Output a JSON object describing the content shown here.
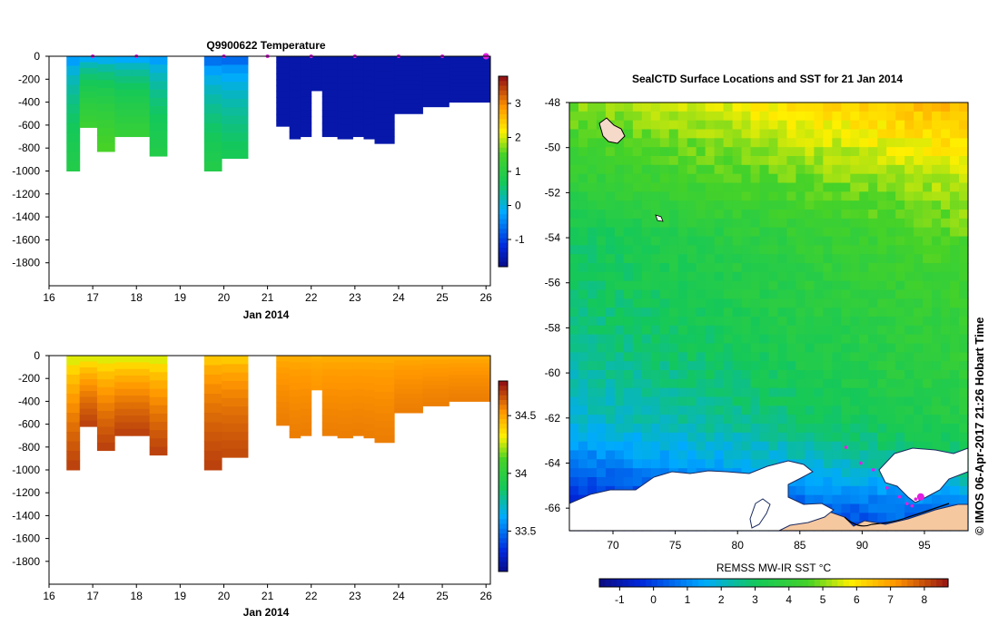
{
  "chart_data": [
    {
      "type": "heatmap",
      "title": "Q9900622  Temperature",
      "xlabel": "Jan 2014",
      "ylabel": "",
      "xlim": [
        16,
        26.1
      ],
      "ylim": [
        -2000,
        0
      ],
      "x_ticks": [
        "16",
        "17",
        "18",
        "19",
        "20",
        "21",
        "22",
        "23",
        "24",
        "25",
        "26"
      ],
      "y_ticks": [
        "0",
        "-200",
        "-400",
        "-600",
        "-800",
        "-1000",
        "-1200",
        "-1400",
        "-1600",
        "-1800"
      ],
      "colorbar": {
        "min": -1.8,
        "max": 3.8,
        "ticks": [
          "-1",
          "0",
          "1",
          "2",
          "3"
        ]
      },
      "surface_markers_days": [
        17,
        18,
        20,
        21,
        22,
        23,
        24,
        25,
        26
      ],
      "profiles": [
        {
          "x0": 16.4,
          "x1": 16.7,
          "depth": 1000,
          "surface": -0.8,
          "deep": 1.0
        },
        {
          "x0": 16.7,
          "x1": 17.1,
          "depth": 620,
          "surface": -0.8,
          "deep": 1.4
        },
        {
          "x0": 17.1,
          "x1": 17.5,
          "depth": 830,
          "surface": -0.8,
          "deep": 1.6
        },
        {
          "x0": 17.5,
          "x1": 17.9,
          "depth": 700,
          "surface": -0.8,
          "deep": 1.3
        },
        {
          "x0": 17.9,
          "x1": 18.3,
          "depth": 700,
          "surface": -0.8,
          "deep": 1.3
        },
        {
          "x0": 18.3,
          "x1": 18.7,
          "depth": 870,
          "surface": -0.8,
          "deep": 1.0
        },
        {
          "x0": 19.55,
          "x1": 19.95,
          "depth": 1000,
          "surface": -1.3,
          "deep": 1.0
        },
        {
          "x0": 19.95,
          "x1": 20.55,
          "depth": 890,
          "surface": -1.3,
          "deep": 0.8
        },
        {
          "x0": 21.2,
          "x1": 21.5,
          "depth": 610,
          "surface": -1.5,
          "deep": -1.5
        },
        {
          "x0": 21.5,
          "x1": 21.75,
          "depth": 720,
          "surface": -1.5,
          "deep": -1.5
        },
        {
          "x0": 21.75,
          "x1": 22.0,
          "depth": 700,
          "surface": -1.5,
          "deep": -1.5
        },
        {
          "x0": 22.0,
          "x1": 22.25,
          "depth": 300,
          "surface": -1.5,
          "deep": -1.5
        },
        {
          "x0": 22.25,
          "x1": 22.6,
          "depth": 700,
          "surface": -1.5,
          "deep": -1.5
        },
        {
          "x0": 22.6,
          "x1": 22.95,
          "depth": 720,
          "surface": -1.5,
          "deep": -1.5
        },
        {
          "x0": 22.95,
          "x1": 23.2,
          "depth": 700,
          "surface": -1.5,
          "deep": -1.5
        },
        {
          "x0": 23.2,
          "x1": 23.45,
          "depth": 720,
          "surface": -1.5,
          "deep": -1.5
        },
        {
          "x0": 23.45,
          "x1": 23.9,
          "depth": 760,
          "surface": -1.5,
          "deep": -1.5
        },
        {
          "x0": 23.9,
          "x1": 24.55,
          "depth": 500,
          "surface": -1.5,
          "deep": -1.5
        },
        {
          "x0": 24.55,
          "x1": 25.15,
          "depth": 440,
          "surface": -1.5,
          "deep": -1.5
        },
        {
          "x0": 25.15,
          "x1": 26.1,
          "depth": 400,
          "surface": -1.5,
          "deep": -1.5
        }
      ]
    },
    {
      "type": "heatmap",
      "title": "",
      "xlabel": "Jan 2014",
      "ylabel": "",
      "xlim": [
        16,
        26.1
      ],
      "ylim": [
        -2000,
        0
      ],
      "x_ticks": [
        "16",
        "17",
        "18",
        "19",
        "20",
        "21",
        "22",
        "23",
        "24",
        "25",
        "26"
      ],
      "y_ticks": [
        "0",
        "-200",
        "-400",
        "-600",
        "-800",
        "-1000",
        "-1200",
        "-1400",
        "-1600",
        "-1800"
      ],
      "colorbar": {
        "min": 33.15,
        "max": 34.8,
        "ticks": [
          "33.5",
          "34",
          "34.5"
        ]
      },
      "profiles": [
        {
          "x0": 16.4,
          "x1": 16.7,
          "depth": 1000,
          "surface": 34.1,
          "deep": 34.72
        },
        {
          "x0": 16.7,
          "x1": 17.1,
          "depth": 620,
          "surface": 34.1,
          "deep": 34.72
        },
        {
          "x0": 17.1,
          "x1": 17.5,
          "depth": 830,
          "surface": 34.1,
          "deep": 34.72
        },
        {
          "x0": 17.5,
          "x1": 17.9,
          "depth": 700,
          "surface": 34.1,
          "deep": 34.72
        },
        {
          "x0": 17.9,
          "x1": 18.3,
          "depth": 700,
          "surface": 34.1,
          "deep": 34.72
        },
        {
          "x0": 18.3,
          "x1": 18.7,
          "depth": 870,
          "surface": 34.1,
          "deep": 34.72
        },
        {
          "x0": 19.55,
          "x1": 19.95,
          "depth": 1000,
          "surface": 34.3,
          "deep": 34.72
        },
        {
          "x0": 19.95,
          "x1": 20.55,
          "depth": 890,
          "surface": 34.3,
          "deep": 34.7
        },
        {
          "x0": 21.2,
          "x1": 21.5,
          "depth": 610,
          "surface": 34.45,
          "deep": 34.6
        },
        {
          "x0": 21.5,
          "x1": 21.75,
          "depth": 720,
          "surface": 34.45,
          "deep": 34.6
        },
        {
          "x0": 21.75,
          "x1": 22.0,
          "depth": 700,
          "surface": 34.45,
          "deep": 34.6
        },
        {
          "x0": 22.0,
          "x1": 22.25,
          "depth": 300,
          "surface": 34.45,
          "deep": 34.55
        },
        {
          "x0": 22.25,
          "x1": 22.6,
          "depth": 700,
          "surface": 34.45,
          "deep": 34.6
        },
        {
          "x0": 22.6,
          "x1": 22.95,
          "depth": 720,
          "surface": 34.45,
          "deep": 34.6
        },
        {
          "x0": 22.95,
          "x1": 23.2,
          "depth": 700,
          "surface": 34.45,
          "deep": 34.6
        },
        {
          "x0": 23.2,
          "x1": 23.45,
          "depth": 720,
          "surface": 34.45,
          "deep": 34.6
        },
        {
          "x0": 23.45,
          "x1": 23.9,
          "depth": 760,
          "surface": 34.45,
          "deep": 34.6
        },
        {
          "x0": 23.9,
          "x1": 24.55,
          "depth": 500,
          "surface": 34.45,
          "deep": 34.6
        },
        {
          "x0": 24.55,
          "x1": 25.15,
          "depth": 440,
          "surface": 34.45,
          "deep": 34.6
        },
        {
          "x0": 25.15,
          "x1": 26.1,
          "depth": 400,
          "surface": 34.45,
          "deep": 34.6
        }
      ]
    },
    {
      "type": "heatmap",
      "title": "SealCTD Surface Locations and SST for 21 Jan 2014",
      "xlabel": "",
      "ylabel": "",
      "xlim": [
        66.5,
        98.5
      ],
      "ylim": [
        -67,
        -48
      ],
      "x_ticks": [
        "70",
        "75",
        "80",
        "85",
        "90",
        "95"
      ],
      "y_ticks": [
        "-48",
        "-50",
        "-52",
        "-54",
        "-56",
        "-58",
        "-60",
        "-62",
        "-64",
        "-66"
      ],
      "colorbar": {
        "label": "REMSS MW-IR SST °C",
        "min": -1.6,
        "max": 8.7,
        "ticks": [
          "-1",
          "0",
          "1",
          "2",
          "3",
          "4",
          "5",
          "6",
          "7",
          "8"
        ]
      },
      "sst_bands": [
        {
          "lat": -48,
          "left": 5.0,
          "right": 6.8
        },
        {
          "lat": -50,
          "left": 4.3,
          "right": 6.0
        },
        {
          "lat": -52,
          "left": 3.8,
          "right": 5.2
        },
        {
          "lat": -54,
          "left": 3.0,
          "right": 4.7
        },
        {
          "lat": -56,
          "left": 2.9,
          "right": 4.4
        },
        {
          "lat": -58,
          "left": 2.6,
          "right": 4.1
        },
        {
          "lat": -60,
          "left": 2.3,
          "right": 3.9
        },
        {
          "lat": -62,
          "left": 1.9,
          "right": 3.6
        },
        {
          "lat": -64,
          "left": 0.8,
          "right": 2.8
        },
        {
          "lat": -66,
          "left": -0.6,
          "right": 1.0
        },
        {
          "lat": -67,
          "left": -1.0,
          "right": 0.5
        }
      ],
      "track": [
        {
          "lon": 88.7,
          "lat": -63.3
        },
        {
          "lon": 89.9,
          "lat": -64.0
        },
        {
          "lon": 90.9,
          "lat": -64.3
        },
        {
          "lon": 92.0,
          "lat": -65.1
        },
        {
          "lon": 93.0,
          "lat": -65.5
        },
        {
          "lon": 93.6,
          "lat": -65.8
        },
        {
          "lon": 94.0,
          "lat": -65.9
        },
        {
          "lon": 94.3,
          "lat": -65.6
        },
        {
          "lon": 94.7,
          "lat": -65.5
        }
      ],
      "credit": "©  IMOS 06-Apr-2017 21:26 Hobart Time"
    }
  ],
  "colors": {
    "marker": "#e020e0",
    "ice": "#ffffff",
    "land": "#f5c8a0"
  }
}
